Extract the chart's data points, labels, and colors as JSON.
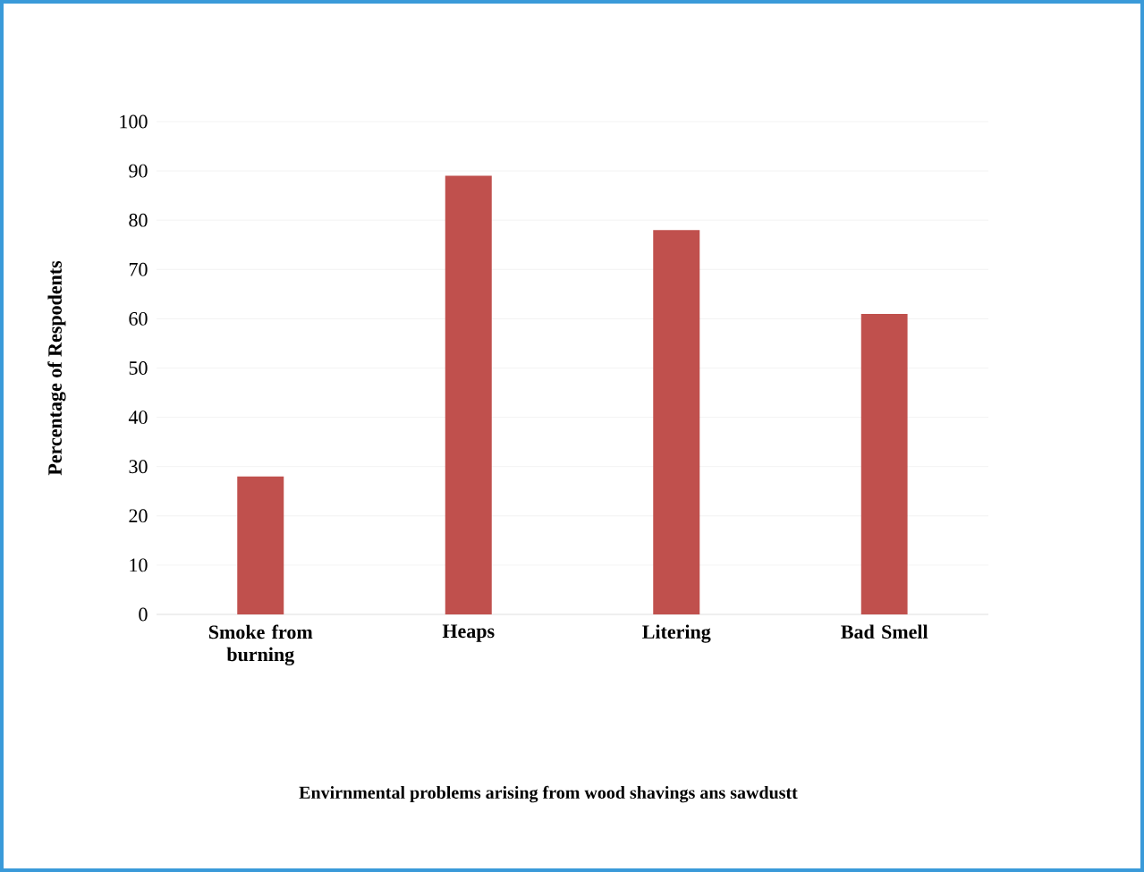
{
  "chart_data": {
    "type": "bar",
    "annotations": [
      "Envirnmental problems arising from wood shavings ans sawdustt"
    ],
    "ylabel": "Percentage of Respodents",
    "categories": [
      "Smoke from burning",
      "Heaps",
      "Litering",
      "Bad Smell"
    ],
    "values": [
      28,
      89,
      78,
      61
    ],
    "color": "#c0504d",
    "ylim": [
      0,
      100
    ],
    "yticks": [
      0,
      10,
      20,
      30,
      40,
      50,
      60,
      70,
      80,
      90,
      100
    ],
    "grid": "y"
  }
}
